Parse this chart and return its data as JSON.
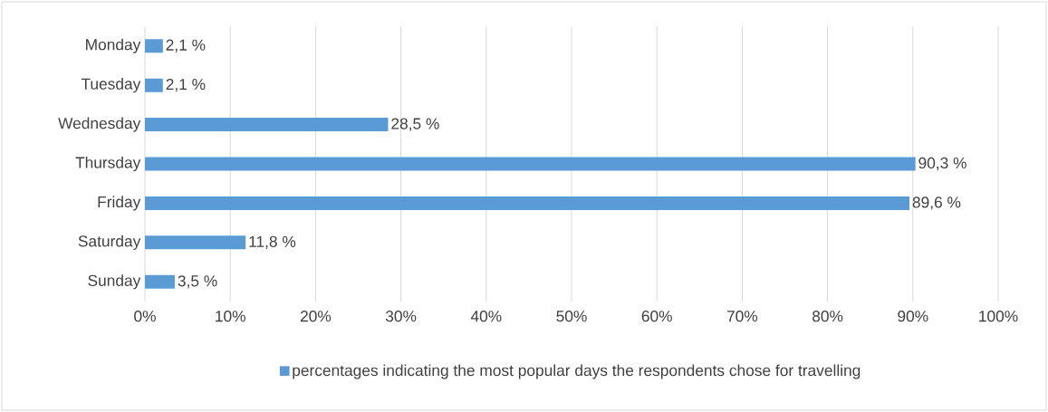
{
  "chart_data": {
    "type": "bar",
    "orientation": "horizontal",
    "categories": [
      "Monday",
      "Tuesday",
      "Wednesday",
      "Thursday",
      "Friday",
      "Saturday",
      "Sunday"
    ],
    "series": [
      {
        "name": "percentages indicating the most popular days the respondents chose for travelling",
        "color": "#5b9bd5",
        "values": [
          2.1,
          2.1,
          28.5,
          90.3,
          89.6,
          11.8,
          3.5
        ],
        "value_labels": [
          "2,1 %",
          "2,1 %",
          "28,5 %",
          "90,3 %",
          "89,6 %",
          "11,8 %",
          "3,5 %"
        ]
      }
    ],
    "xlim": [
      0,
      100
    ],
    "xticks": [
      {
        "value": 0,
        "label": "0%"
      },
      {
        "value": 10,
        "label": "10%"
      },
      {
        "value": 20,
        "label": "20%"
      },
      {
        "value": 30,
        "label": "30%"
      },
      {
        "value": 40,
        "label": "40%"
      },
      {
        "value": 50,
        "label": "50%"
      },
      {
        "value": 60,
        "label": "60%"
      },
      {
        "value": 70,
        "label": "70%"
      },
      {
        "value": 80,
        "label": "80%"
      },
      {
        "value": 90,
        "label": "90%"
      },
      {
        "value": 100,
        "label": "100%"
      }
    ],
    "grid": "x",
    "legend": "bottom"
  }
}
